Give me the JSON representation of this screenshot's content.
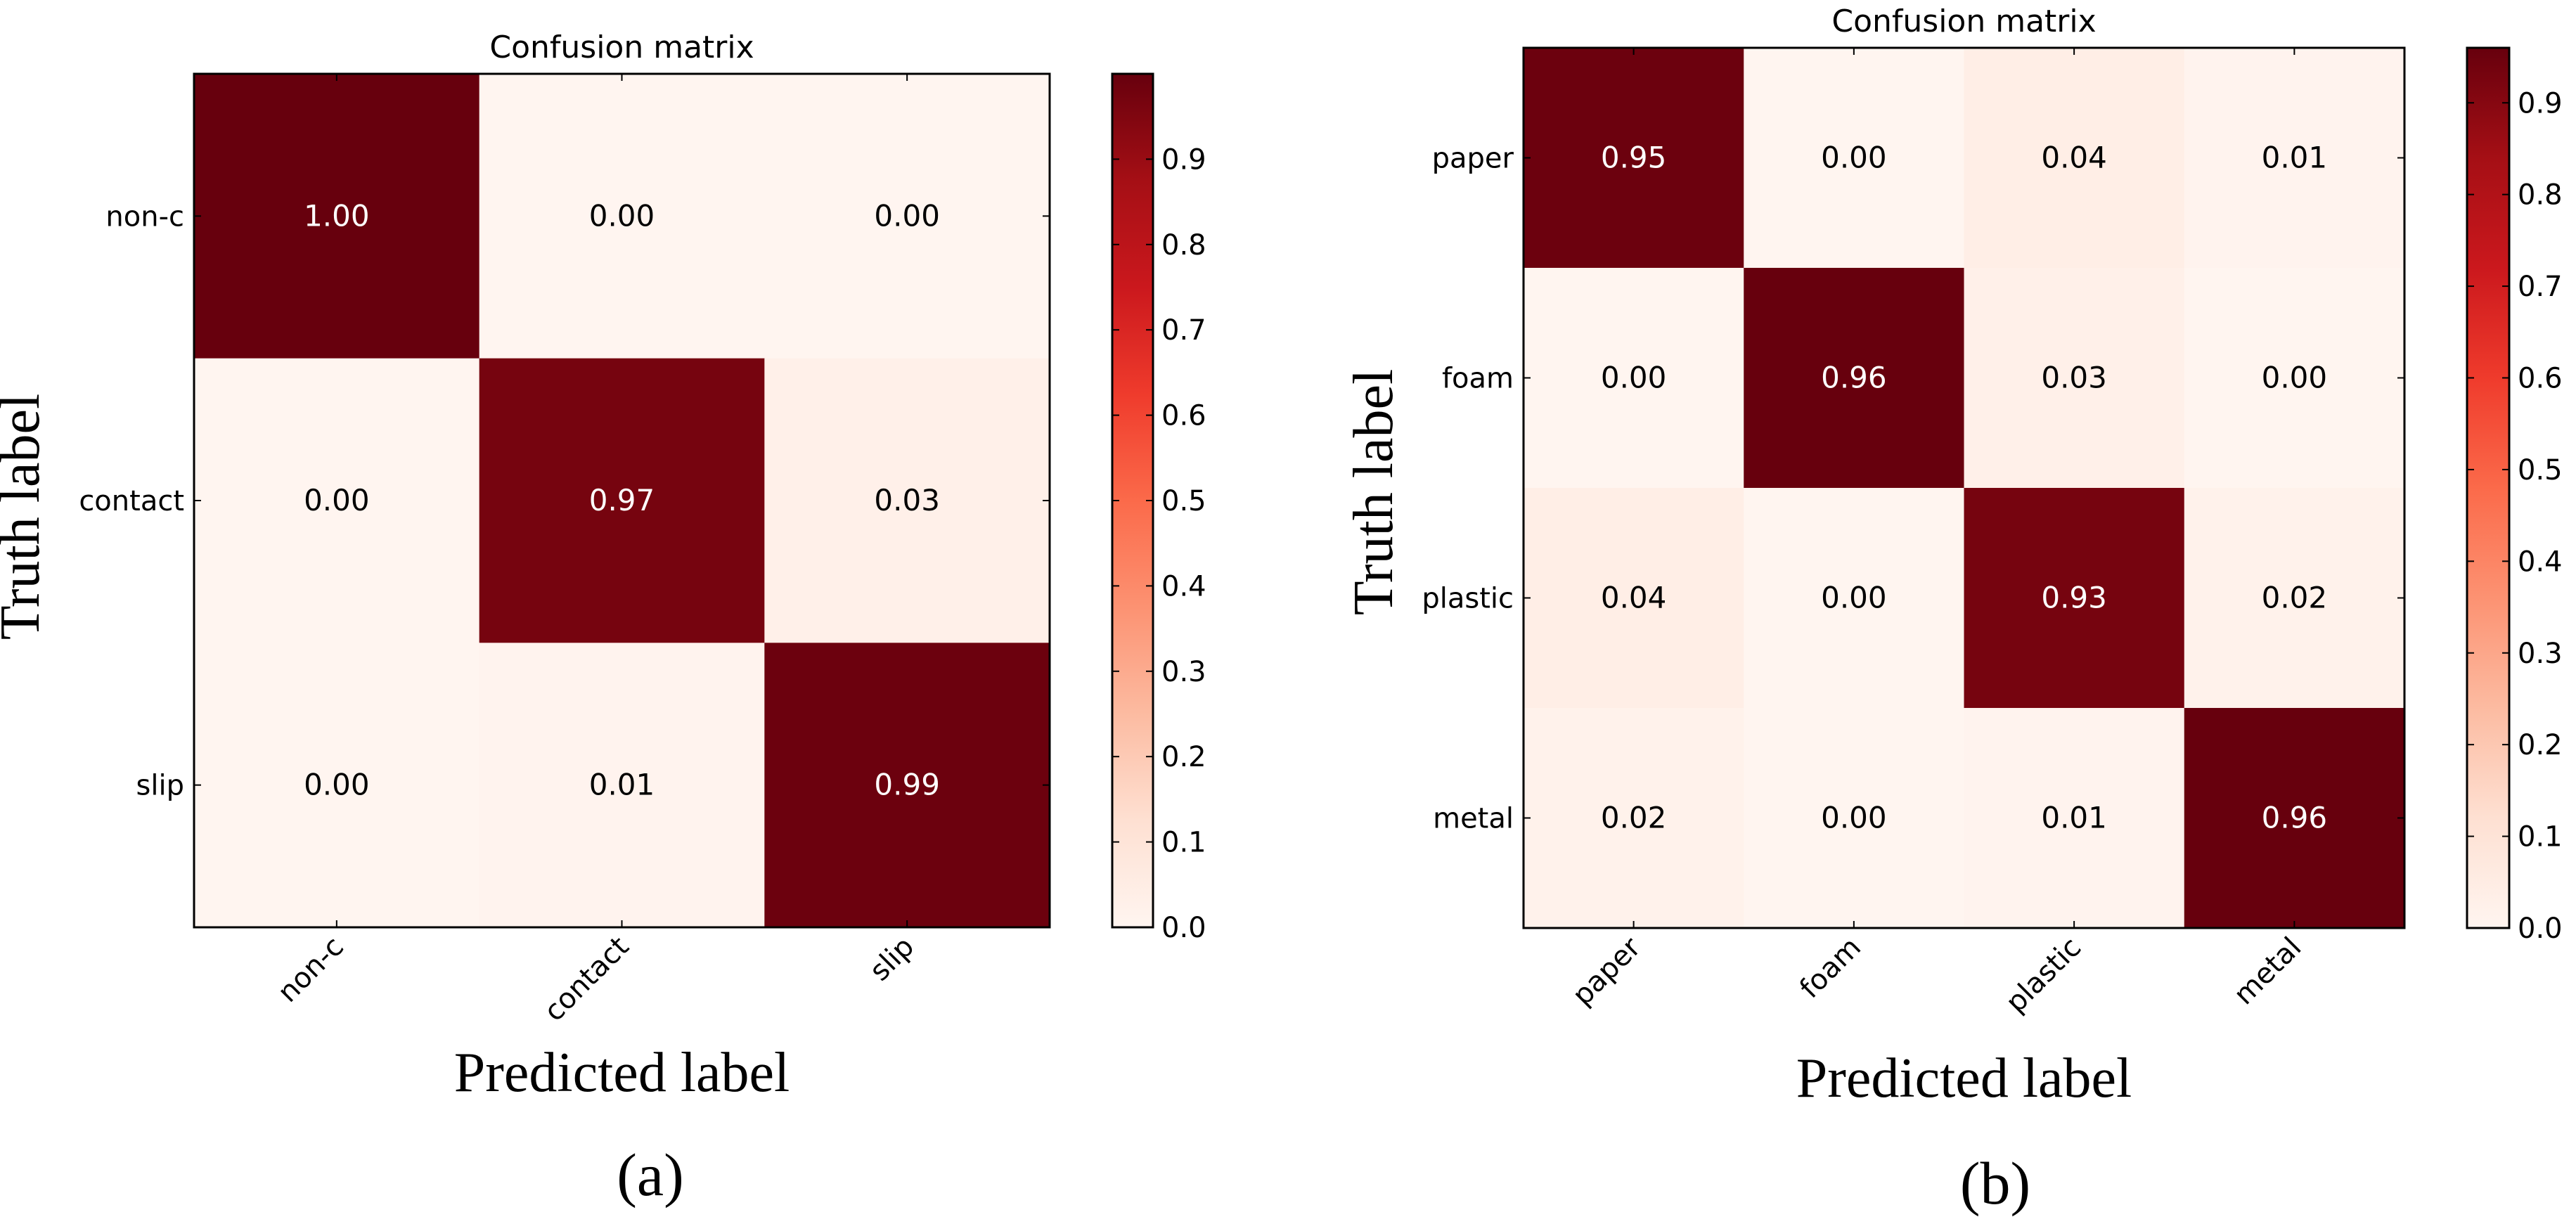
{
  "figure": {
    "caption_a": "(a)",
    "caption_b": "(b)"
  },
  "chart_data": [
    {
      "type": "heatmap",
      "title": "Confusion matrix",
      "xlabel": "Predicted label",
      "ylabel": "Truth label",
      "caption": "(a)",
      "x_categories": [
        "non-c",
        "contact",
        "slip"
      ],
      "y_categories": [
        "non-c",
        "contact",
        "slip"
      ],
      "values": [
        [
          1.0,
          0.0,
          0.0
        ],
        [
          0.0,
          0.97,
          0.03
        ],
        [
          0.0,
          0.01,
          0.99
        ]
      ],
      "cell_labels": [
        [
          "1.00",
          "0.00",
          "0.00"
        ],
        [
          "0.00",
          "0.97",
          "0.03"
        ],
        [
          "0.00",
          "0.01",
          "0.99"
        ]
      ],
      "colorbar": {
        "range": [
          0,
          1.0
        ],
        "ticks": [
          0.0,
          0.1,
          0.2,
          0.3,
          0.4,
          0.5,
          0.6,
          0.7,
          0.8,
          0.9
        ],
        "tick_labels": [
          "0.0",
          "0.1",
          "0.2",
          "0.3",
          "0.4",
          "0.5",
          "0.6",
          "0.7",
          "0.8",
          "0.9"
        ]
      },
      "colormap": "Reds"
    },
    {
      "type": "heatmap",
      "title": "Confusion matrix",
      "xlabel": "Predicted label",
      "ylabel": "Truth label",
      "caption": "(b)",
      "x_categories": [
        "paper",
        "foam",
        "plastic",
        "metal"
      ],
      "y_categories": [
        "paper",
        "foam",
        "plastic",
        "metal"
      ],
      "values": [
        [
          0.95,
          0.0,
          0.04,
          0.01
        ],
        [
          0.0,
          0.96,
          0.03,
          0.0
        ],
        [
          0.04,
          0.0,
          0.93,
          0.02
        ],
        [
          0.02,
          0.0,
          0.01,
          0.96
        ]
      ],
      "cell_labels": [
        [
          "0.95",
          "0.00",
          "0.04",
          "0.01"
        ],
        [
          "0.00",
          "0.96",
          "0.03",
          "0.00"
        ],
        [
          "0.04",
          "0.00",
          "0.93",
          "0.02"
        ],
        [
          "0.02",
          "0.00",
          "0.01",
          "0.96"
        ]
      ],
      "colorbar": {
        "range": [
          0,
          0.96
        ],
        "ticks": [
          0.0,
          0.1,
          0.2,
          0.3,
          0.4,
          0.5,
          0.6,
          0.7,
          0.8,
          0.9
        ],
        "tick_labels": [
          "0.0",
          "0.1",
          "0.2",
          "0.3",
          "0.4",
          "0.5",
          "0.6",
          "0.7",
          "0.8",
          "0.9"
        ]
      },
      "colormap": "Reds"
    }
  ]
}
